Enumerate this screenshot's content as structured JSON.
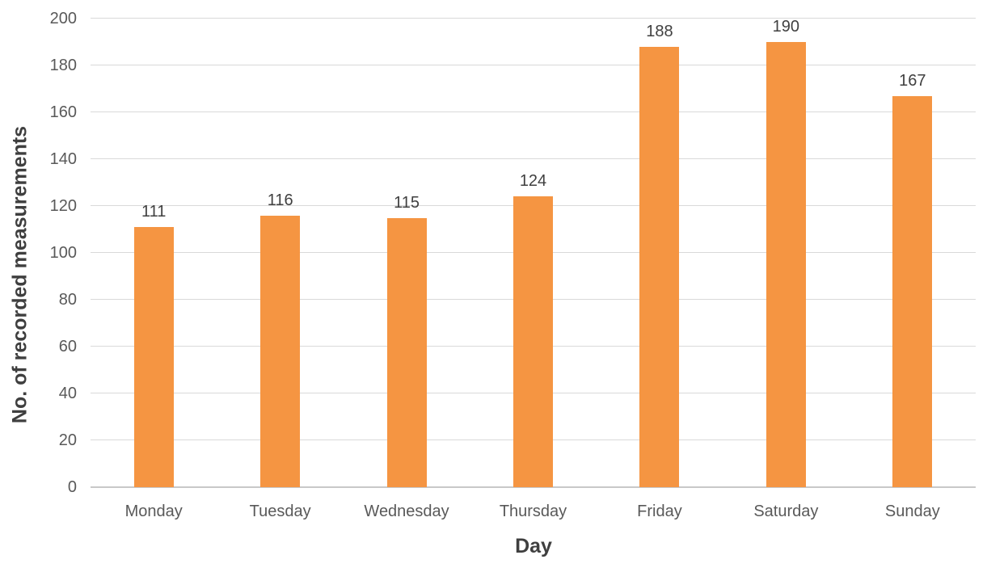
{
  "chart_data": {
    "type": "bar",
    "title": "",
    "categories": [
      "Monday",
      "Tuesday",
      "Wednesday",
      "Thursday",
      "Friday",
      "Saturday",
      "Sunday"
    ],
    "values": [
      111,
      116,
      115,
      124,
      188,
      190,
      167
    ],
    "xlabel": "Day",
    "ylabel": "No. of recorded measurements",
    "ylim": [
      0,
      200
    ],
    "yticks": [
      0,
      20,
      40,
      60,
      80,
      100,
      120,
      140,
      160,
      180,
      200
    ],
    "grid": true,
    "legend": "none",
    "data_labels_shown": true,
    "colors": {
      "bar": "#F59542",
      "gridline": "#D9D9D9",
      "axis_line": "#C8C8C8",
      "tick_text": "#595959",
      "title_text": "#3F3F3F",
      "value_label_text": "#404040",
      "background": "#FFFFFF"
    }
  }
}
